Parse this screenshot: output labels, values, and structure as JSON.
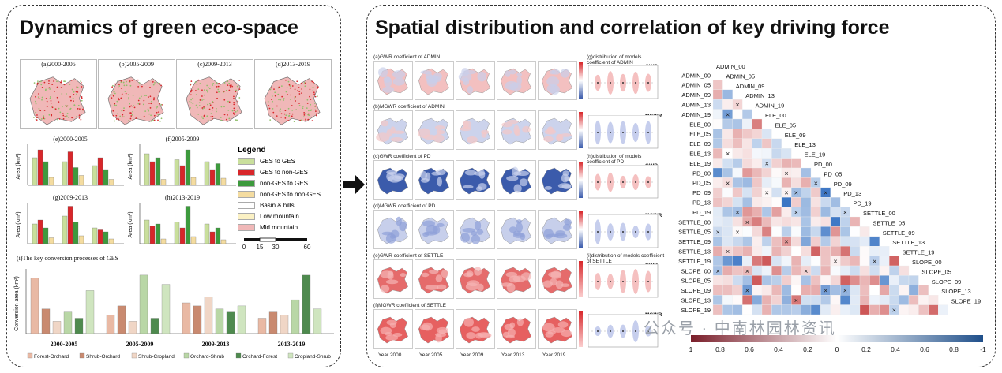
{
  "left_title": "Dynamics of green eco-space",
  "right_title": "Spatial distribution and correlation of key driving force",
  "maps_top": [
    "(a)2000-2005",
    "(b)2005-2009",
    "(c)2009-2013",
    "(d)2013-2019"
  ],
  "chart_titles": [
    "(e)2000-2005",
    "(f)2005-2009",
    "(g)2009-2013",
    "(h)2013-2019"
  ],
  "area_ylabel": "Area (km²)",
  "legend": {
    "title": "Legend",
    "items": [
      {
        "label": "GES to GES",
        "color": "#c9df9c"
      },
      {
        "label": "GES to non-GES",
        "color": "#d8262a"
      },
      {
        "label": "non-GES to GES",
        "color": "#3d9a3d"
      },
      {
        "label": "non-GES to non-GES",
        "color": "#f4dca0"
      },
      {
        "label": "Basin & hills",
        "color": "#ffffff"
      },
      {
        "label": "Low mountain",
        "color": "#fbf1c4"
      },
      {
        "label": "Mid mountain",
        "color": "#f0b8b8"
      }
    ]
  },
  "scale_ticks": [
    "0",
    "15",
    "30",
    "60"
  ],
  "conversion": {
    "title": "(i)The key conversion processes of GES",
    "ylabel": "Conversion area (km²)",
    "periods": [
      "2000-2005",
      "2005-2009",
      "2009-2013",
      "2013-2019"
    ],
    "series": [
      "Forest-Orchard",
      "Shrub-Orchard",
      "Shrub-Cropland",
      "Orchard-Shrub",
      "Orchard-Forest",
      "Cropland-Shrub"
    ],
    "series_colors": [
      "#e9b9a4",
      "#c98a70",
      "#f0d6c6",
      "#b9d7a6",
      "#4e8a4e",
      "#cfe5bf"
    ]
  },
  "right_rows": [
    {
      "label": "(a)GWR coefficient of ADMIN",
      "model": "GWR"
    },
    {
      "label": "(b)MGWR coefficient of ADMIN",
      "model": "MGWR"
    },
    {
      "label": "(c)GWR coefficient of PD",
      "model": "GWR"
    },
    {
      "label": "(d)MGWR coefficient of PD",
      "model": "MGWR"
    },
    {
      "label": "(e)GWR coefficient of SETTLE",
      "model": "GWR"
    },
    {
      "label": "(f)MGWR coefficient of SETTLE",
      "model": "MGWR"
    }
  ],
  "dist_titles": [
    "(g)distribution of models coefficient of ADMIN",
    "(h)distribution of models coefficient of PD",
    "(i)distribution of models coefficient of SETTLE"
  ],
  "year_labels": [
    "Year 2000",
    "Year 2005",
    "Year 2009",
    "Year 2013",
    "Year 2019"
  ],
  "corr_vars": [
    "ADMIN_00",
    "ADMIN_05",
    "ADMIN_09",
    "ADMIN_13",
    "ADMIN_19",
    "ELE_00",
    "ELE_05",
    "ELE_09",
    "ELE_13",
    "ELE_19",
    "PD_00",
    "PD_05",
    "PD_09",
    "PD_13",
    "PD_19",
    "SETTLE_00",
    "SETTLE_05",
    "SETTLE_09",
    "SETTLE_13",
    "SETTLE_19",
    "SLOPE_00",
    "SLOPE_05",
    "SLOPE_09",
    "SLOPE_13",
    "SLOPE_19"
  ],
  "colorbar_ticks": [
    "1",
    "0.8",
    "0.6",
    "0.4",
    "0.2",
    "0",
    "0.2",
    "0.4",
    "0.6",
    "0.8",
    "-1"
  ],
  "watermark": "公众号 · 中南林园林资讯"
}
